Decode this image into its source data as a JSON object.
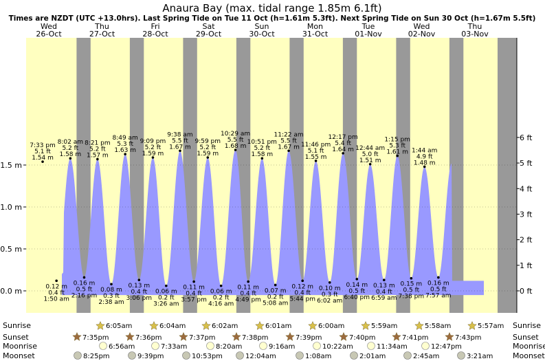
{
  "title": "Anaura Bay (max. tidal range 1.85m 6.1ft)",
  "subtitle": "Times are NZDT (UTC +13.0hrs). Last Spring Tide on Tue 11 Oct (h=1.61m 5.3ft). Next Spring Tide on Sun 30 Oct (h=1.67m 5.5ft)",
  "colors": {
    "tide": "#9999ff",
    "day": "#ffffc0",
    "night": "#999999",
    "date_text": "#cc0000",
    "sun_star": "#d8c04a",
    "sunset_star": "#9b6b3e",
    "moon_full": "#ffffd0",
    "moon_dark": "#c8c8b4"
  },
  "days": [
    {
      "dow": "Wed",
      "date": "26-Oct"
    },
    {
      "dow": "Thu",
      "date": "27-Oct"
    },
    {
      "dow": "Fri",
      "date": "28-Oct"
    },
    {
      "dow": "Sat",
      "date": "29-Oct"
    },
    {
      "dow": "Sun",
      "date": "30-Oct"
    },
    {
      "dow": "Mon",
      "date": "31-Oct"
    },
    {
      "dow": "Tue",
      "date": "01-Nov"
    },
    {
      "dow": "Wed",
      "date": "02-Nov"
    },
    {
      "dow": "Thu",
      "date": "03-Nov"
    }
  ],
  "chart_data": {
    "type": "area",
    "left_axis": {
      "ticks": [
        0.0,
        0.5,
        1.0,
        1.5
      ],
      "labels": [
        "0.0 m",
        "0.5 m",
        "1.0 m",
        "1.5 m"
      ]
    },
    "right_axis": {
      "ticks": [
        0,
        1,
        2,
        3,
        4,
        5,
        6
      ],
      "labels": [
        "0 ft",
        "1 ft",
        "2 ft",
        "3 ft",
        "4 ft",
        "5 ft",
        "6 ft"
      ]
    },
    "ylim": [
      -0.1,
      1.85
    ],
    "tides": [
      {
        "time": "7:33 pm",
        "ft": "5.1 ft",
        "m": "1.54 m",
        "h": 1.54,
        "t": 0.31,
        "type": "high"
      },
      {
        "time": "1:50 am",
        "ft": "0.4 ft",
        "m": "0.12 m",
        "h": 0.12,
        "t": 0.57,
        "type": "low"
      },
      {
        "time": "8:02 am",
        "ft": "5.2 ft",
        "m": "1.58 m",
        "h": 1.58,
        "t": 0.83,
        "type": "high"
      },
      {
        "time": "2:16 pm",
        "ft": "0.5 ft",
        "m": "0.16 m",
        "h": 0.16,
        "t": 1.09,
        "type": "low"
      },
      {
        "time": "8:21 pm",
        "ft": "5.2 ft",
        "m": "1.57 m",
        "h": 1.57,
        "t": 1.34,
        "type": "high"
      },
      {
        "time": "2:38 am",
        "ft": "0.3 ft",
        "m": "0.08 m",
        "h": 0.08,
        "t": 1.6,
        "type": "low"
      },
      {
        "time": "8:49 am",
        "ft": "5.3 ft",
        "m": "1.63 m",
        "h": 1.63,
        "t": 1.86,
        "type": "high"
      },
      {
        "time": "3:06 pm",
        "ft": "0.4 ft",
        "m": "0.13 m",
        "h": 0.13,
        "t": 2.12,
        "type": "low"
      },
      {
        "time": "9:09 pm",
        "ft": "5.2 ft",
        "m": "1.59 m",
        "h": 1.59,
        "t": 2.38,
        "type": "high"
      },
      {
        "time": "3:26 am",
        "ft": "0.2 ft",
        "m": "0.06 m",
        "h": 0.06,
        "t": 2.63,
        "type": "low"
      },
      {
        "time": "9:38 am",
        "ft": "5.5 ft",
        "m": "1.67 m",
        "h": 1.67,
        "t": 2.89,
        "type": "high"
      },
      {
        "time": "3:57 pm",
        "ft": "0.4 ft",
        "m": "0.11 m",
        "h": 0.11,
        "t": 3.15,
        "type": "low"
      },
      {
        "time": "9:59 pm",
        "ft": "5.2 ft",
        "m": "1.59 m",
        "h": 1.59,
        "t": 3.41,
        "type": "high"
      },
      {
        "time": "4:16 am",
        "ft": "0.2 ft",
        "m": "0.06 m",
        "h": 0.06,
        "t": 3.66,
        "type": "low"
      },
      {
        "time": "10:29 am",
        "ft": "5.5 ft",
        "m": "1.68 m",
        "h": 1.68,
        "t": 3.93,
        "type": "high"
      },
      {
        "time": "4:49 pm",
        "ft": "0.4 ft",
        "m": "0.11 m",
        "h": 0.11,
        "t": 4.17,
        "type": "low"
      },
      {
        "time": "10:51 pm",
        "ft": "5.2 ft",
        "m": "1.58 m",
        "h": 1.58,
        "t": 4.43,
        "type": "high"
      },
      {
        "time": "5:08 am",
        "ft": "0.2 ft",
        "m": "0.07 m",
        "h": 0.07,
        "t": 4.68,
        "type": "low"
      },
      {
        "time": "11:22 am",
        "ft": "5.5 ft",
        "m": "1.67 m",
        "h": 1.67,
        "t": 4.93,
        "type": "high"
      },
      {
        "time": "5:44 pm",
        "ft": "0.4 ft",
        "m": "0.12 m",
        "h": 0.12,
        "t": 5.19,
        "type": "low"
      },
      {
        "time": "11:46 pm",
        "ft": "5.1 ft",
        "m": "1.55 m",
        "h": 1.55,
        "t": 5.44,
        "type": "high"
      },
      {
        "time": "6:02 am",
        "ft": "0.3 ft",
        "m": "0.10 m",
        "h": 0.1,
        "t": 5.7,
        "type": "low"
      },
      {
        "time": "12:17 pm",
        "ft": "5.4 ft",
        "m": "1.64 m",
        "h": 1.64,
        "t": 5.95,
        "type": "high"
      },
      {
        "time": "6:40 pm",
        "ft": "0.5 ft",
        "m": "0.14 m",
        "h": 0.14,
        "t": 6.21,
        "type": "low"
      },
      {
        "time": "12:44 am",
        "ft": "5.0 ft",
        "m": "1.51 m",
        "h": 1.51,
        "t": 6.46,
        "type": "high"
      },
      {
        "time": "6:59 am",
        "ft": "0.4 ft",
        "m": "0.13 m",
        "h": 0.13,
        "t": 6.72,
        "type": "low"
      },
      {
        "time": "1:15 pm",
        "ft": "5.3 ft",
        "m": "1.61 m",
        "h": 1.61,
        "t": 6.97,
        "type": "high"
      },
      {
        "time": "7:38 pm",
        "ft": "0.5 ft",
        "m": "0.15 m",
        "h": 0.15,
        "t": 7.23,
        "type": "low"
      },
      {
        "time": "1:44 am",
        "ft": "4.9 ft",
        "m": "1.48 m",
        "h": 1.48,
        "t": 7.48,
        "type": "high"
      },
      {
        "time": "7:57 am",
        "ft": "0.5 ft",
        "m": "0.16 m",
        "h": 0.16,
        "t": 7.74,
        "type": "low"
      }
    ]
  },
  "rows": {
    "sunrise": {
      "label": "Sunrise",
      "times": [
        "6:05am",
        "6:04am",
        "6:02am",
        "6:01am",
        "6:00am",
        "5:59am",
        "5:58am",
        "5:57am"
      ]
    },
    "sunset": {
      "label": "Sunset",
      "times": [
        "7:35pm",
        "7:36pm",
        "7:37pm",
        "7:38pm",
        "7:39pm",
        "7:40pm",
        "7:41pm",
        "7:43pm"
      ]
    },
    "moonrise": {
      "label": "Moonrise",
      "times": [
        "6:56am",
        "7:33am",
        "8:20am",
        "9:16am",
        "10:22am",
        "11:34am",
        "12:47pm"
      ]
    },
    "moonset": {
      "label": "Moonset",
      "times": [
        "8:25pm",
        "9:39pm",
        "10:53pm",
        "12:04am",
        "1:08am",
        "2:01am",
        "2:45am",
        "3:21am"
      ]
    }
  }
}
